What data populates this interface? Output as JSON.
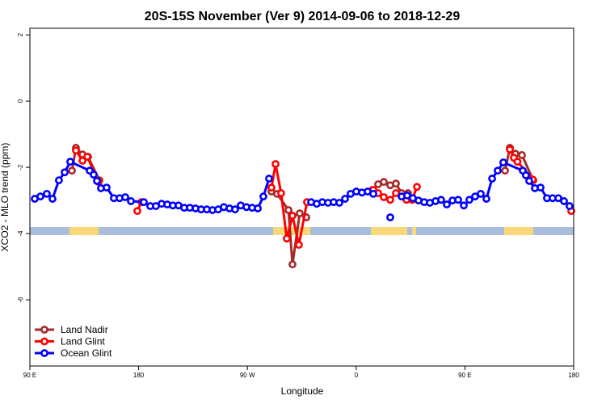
{
  "chart_data": {
    "type": "line",
    "title": "20S-15S November (Ver 9)   2014-09-06 to 2018-12-29",
    "x_label": "Longitude",
    "y_label": "XCO2 - MLO trend (ppm)",
    "xlim": [
      90,
      540
    ],
    "ylim": [
      -8,
      2.2
    ],
    "xticks": [
      {
        "value": 90,
        "label": "90 E"
      },
      180,
      {
        "value": 270,
        "label": "90 W"
      },
      {
        "value": 360,
        "label": "0"
      },
      {
        "value": 450,
        "label": "90 E"
      },
      {
        "value": 540,
        "label": "180"
      }
    ],
    "yticks": [
      2,
      0,
      -2,
      -4,
      -6
    ],
    "legend": "bottom-left",
    "series": [
      {
        "name": "Land Nadir",
        "color": "#a52a2a",
        "x": [
          124.8,
          128.1,
          133.5,
          138.1,
          147.5,
          null,
          289.9,
          294.6,
          304,
          307.3,
          313.3,
          318.7,
          null,
          373.5,
          378.2,
          382.9,
          388.2,
          392.9,
          397.6,
          402.9,
          null,
          483.2,
          487.2,
          491.8,
          497.2,
          506.6
        ],
        "values": [
          -2.1,
          -1.41,
          -1.61,
          -1.68,
          -2.39,
          null,
          -2.73,
          -2.8,
          -3.29,
          -4.93,
          -3.39,
          -3.51,
          null,
          -2.68,
          -2.51,
          -2.44,
          -2.54,
          -2.49,
          -2.78,
          -2.78,
          null,
          -2.1,
          -1.41,
          -1.59,
          -1.63,
          -2.39
        ]
      },
      {
        "name": "Land Glint",
        "color": "#ff0000",
        "x": [
          128.1,
          133.5,
          137.5,
          146.8,
          null,
          178.9,
          182.3,
          null,
          289.9,
          293.3,
          297.9,
          302.6,
          307.3,
          312.6,
          319.3,
          null,
          374.2,
          378.2,
          382.9,
          388.2,
          392.9,
          401.6,
          406.3,
          410.3,
          null,
          487.2,
          490.5,
          493.5,
          506.2,
          null,
          538
        ],
        "values": [
          -1.49,
          -1.8,
          -1.68,
          -2.44,
          null,
          -3.32,
          -3.05,
          null,
          -2.61,
          -1.9,
          -2.78,
          -4.15,
          -3.46,
          -4.34,
          -3.05,
          null,
          -2.68,
          -2.78,
          -2.9,
          -2.98,
          -2.78,
          -2.98,
          -2.98,
          -2.59,
          null,
          -1.46,
          -1.71,
          -1.83,
          -2.37,
          null,
          -3.32
        ]
      },
      {
        "name": "Ocean Glint",
        "color": "#0000ff",
        "x": [
          94,
          98.7,
          104,
          108.7,
          114,
          118.8,
          123.4,
          139.5,
          142.8,
          145.5,
          148.8,
          153.5,
          159.5,
          164.2,
          168.9,
          173.6,
          184.3,
          189.6,
          194.3,
          199,
          203.7,
          208.3,
          213,
          217.7,
          222.4,
          227.1,
          231.7,
          236.4,
          241.1,
          245.8,
          250.5,
          255.2,
          259.8,
          264.5,
          269.2,
          273.9,
          278.6,
          283.2,
          287.9,
          null,
          322.7,
          327.4,
          332,
          336.7,
          341.4,
          346.1,
          350.8,
          355.4,
          360.1,
          364.8,
          369.5,
          374.2,
          null,
          388.2,
          null,
          397.6,
          402.2,
          406.9,
          411.6,
          416.3,
          421,
          425.7,
          430.3,
          435,
          439.7,
          444.4,
          449.1,
          453.7,
          458.4,
          463.1,
          467.8,
          472.5,
          477.1,
          481.8,
          497.9,
          500.5,
          503.2,
          507.9,
          512.6,
          517.9,
          522.6,
          527.3,
          532,
          536.6
        ],
        "values": [
          -2.95,
          -2.88,
          -2.8,
          -2.95,
          -2.39,
          -2.15,
          -1.83,
          -2.1,
          -2.22,
          -2.41,
          -2.63,
          -2.61,
          -2.93,
          -2.93,
          -2.9,
          -3.02,
          -3.05,
          -3.17,
          -3.17,
          -3.1,
          -3.12,
          -3.15,
          -3.15,
          -3.22,
          -3.22,
          -3.24,
          -3.27,
          -3.27,
          -3.29,
          -3.27,
          -3.2,
          -3.24,
          -3.27,
          -3.15,
          -3.2,
          -3.22,
          -3.24,
          -2.88,
          -2.34,
          null,
          -3.05,
          -3.1,
          -3.05,
          -3.07,
          -3.05,
          -3.07,
          -2.95,
          -2.8,
          -2.73,
          -2.76,
          -2.73,
          -2.8,
          null,
          -3.51,
          null,
          -2.88,
          -2.85,
          -2.93,
          -3.0,
          -3.05,
          -3.07,
          -3.02,
          -2.98,
          -3.12,
          -3.0,
          -2.98,
          -3.15,
          -2.98,
          -2.88,
          -2.8,
          -2.95,
          -2.34,
          -2.1,
          -1.85,
          -2.1,
          -2.24,
          -2.41,
          -2.63,
          -2.61,
          -2.93,
          -2.93,
          -2.93,
          -3.02,
          -3.17
        ]
      }
    ]
  }
}
